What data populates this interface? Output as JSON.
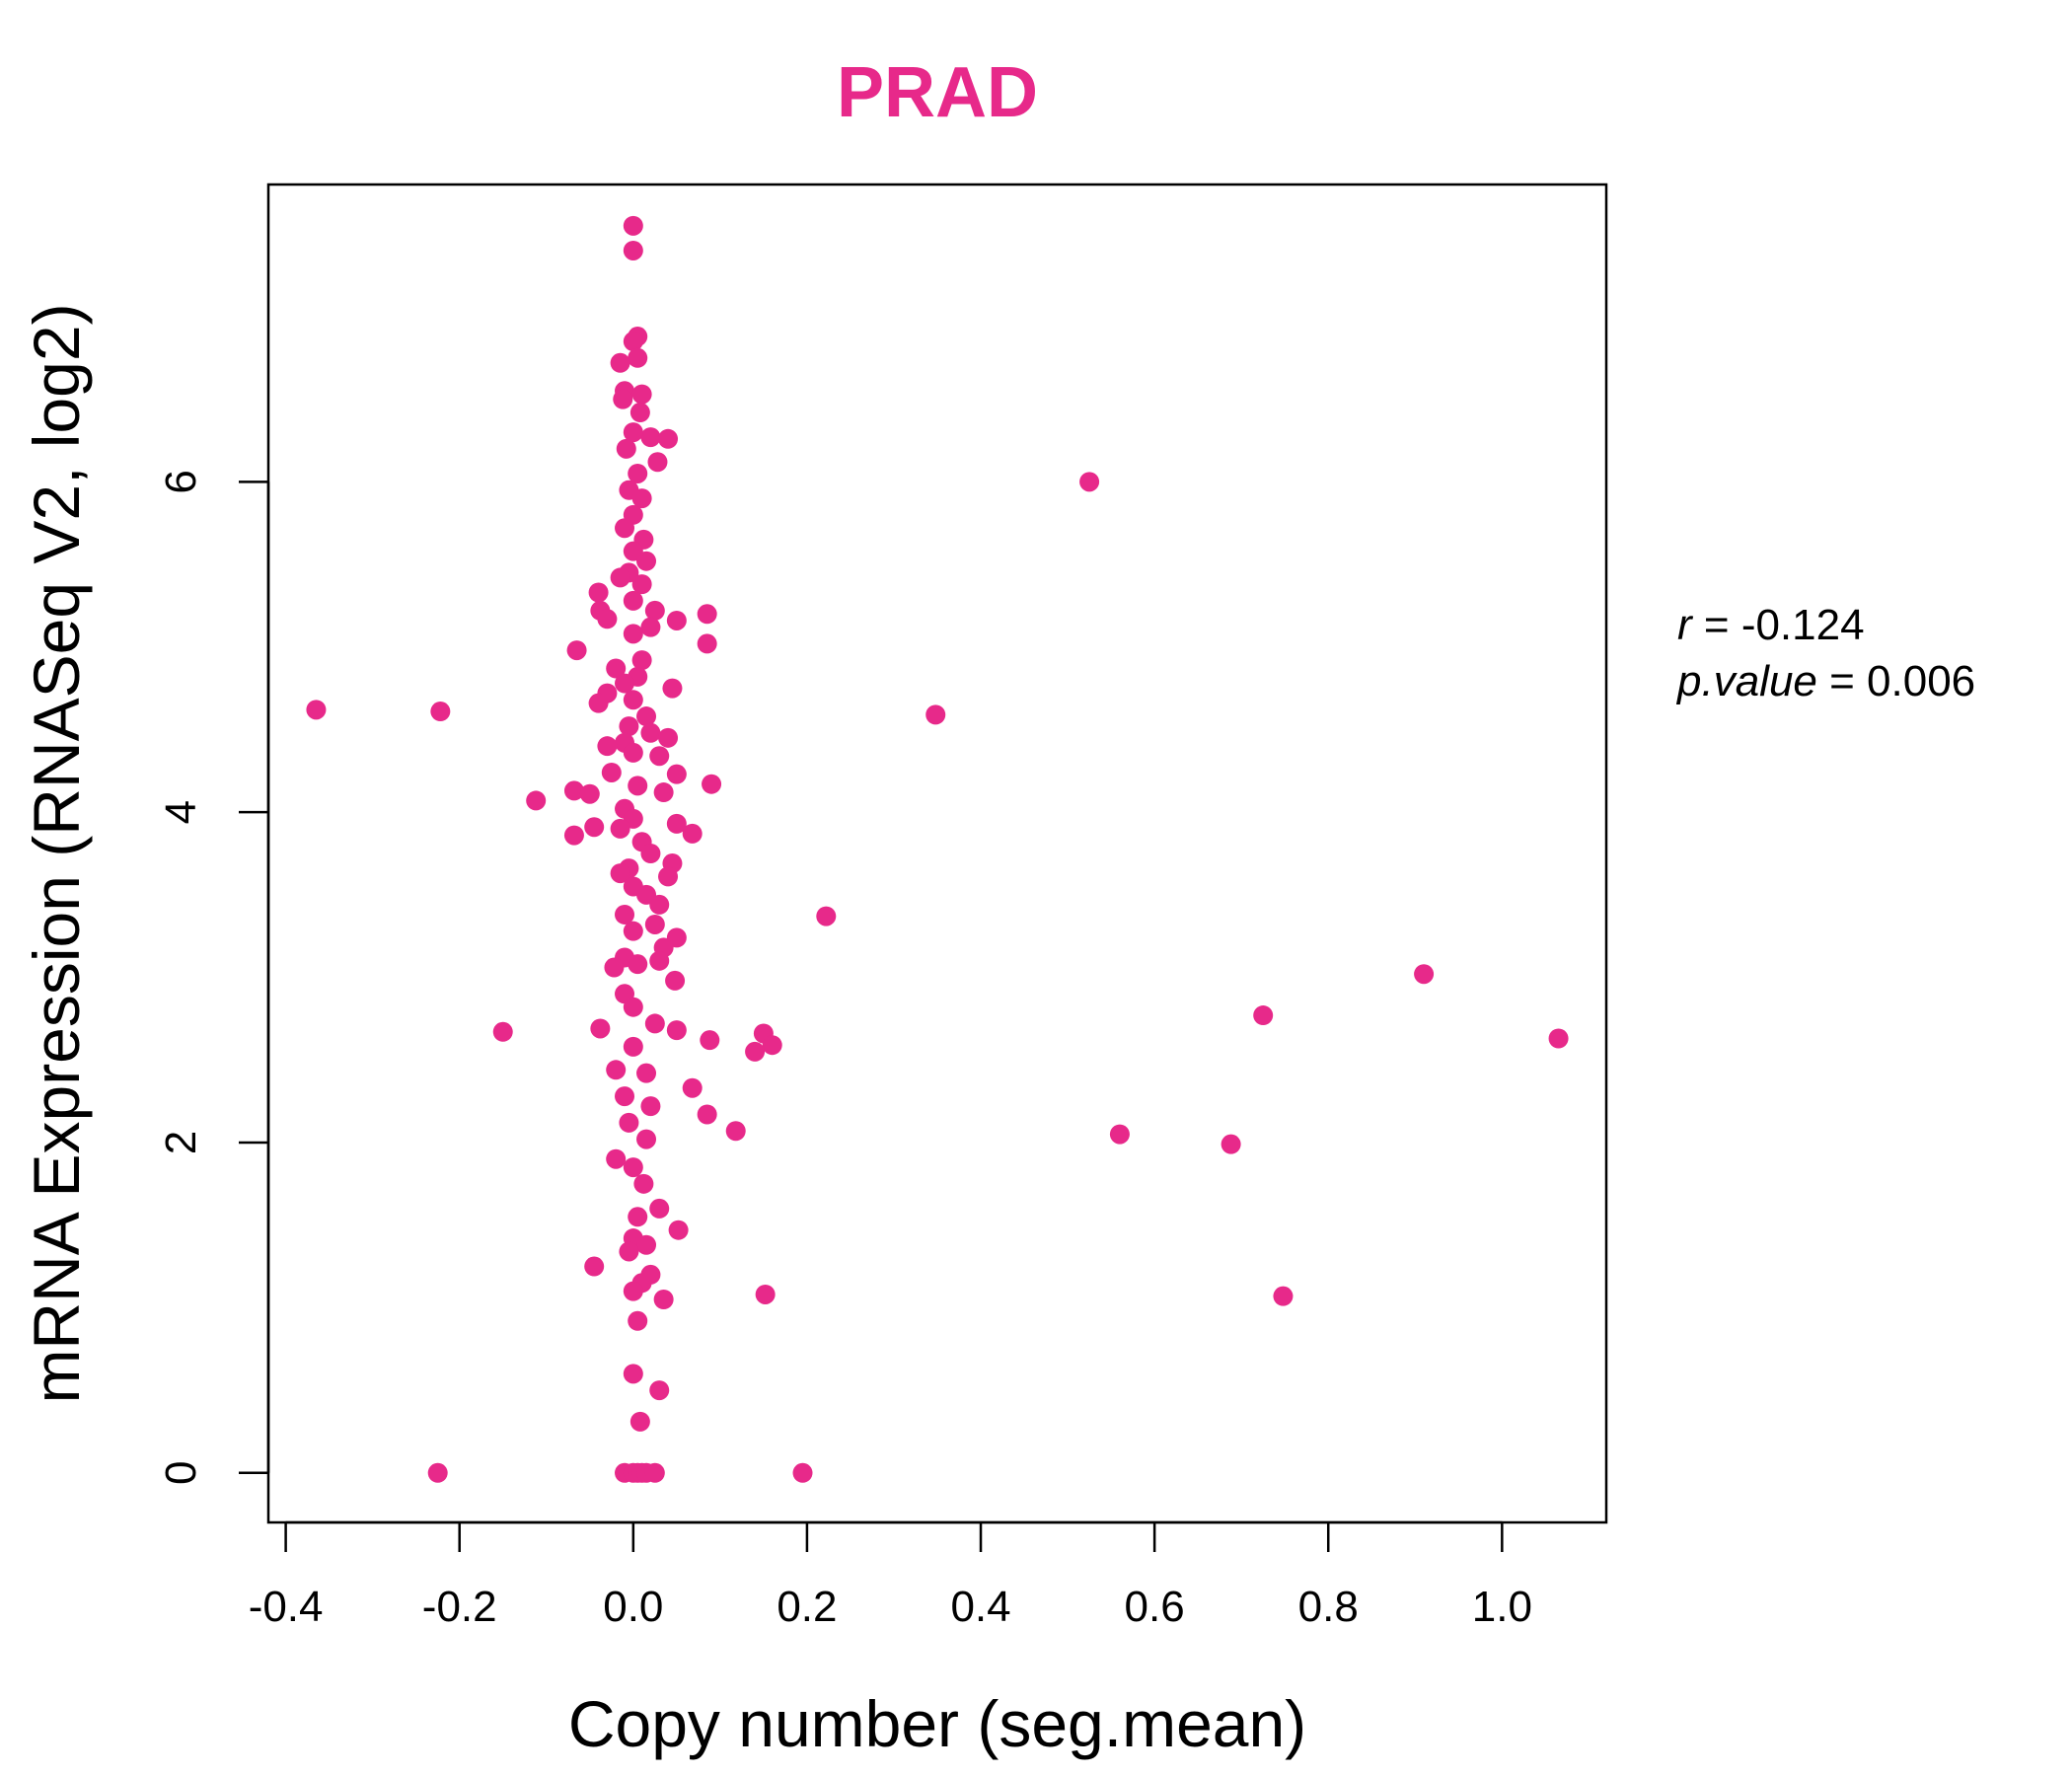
{
  "chart_data": {
    "type": "scatter",
    "title": "PRAD",
    "xlabel": "Copy number (seg.mean)",
    "ylabel": "mRNA Expression (RNASeq V2, log2)",
    "xlim": [
      -0.42,
      1.12
    ],
    "ylim": [
      -0.3,
      7.8
    ],
    "xticks": [
      -0.4,
      -0.2,
      0.0,
      0.2,
      0.4,
      0.6,
      0.8,
      1.0
    ],
    "xtick_labels": [
      "-0.4",
      "-0.2",
      "0.0",
      "0.2",
      "0.4",
      "0.6",
      "0.8",
      "1.0"
    ],
    "yticks": [
      0,
      2,
      4,
      6
    ],
    "ytick_labels": [
      "0",
      "2",
      "4",
      "6"
    ],
    "grid": false,
    "point_color": "#e7298a",
    "title_color": "#e7298a",
    "stats": {
      "r_label": "r",
      "r_value": "-0.124",
      "p_label": "p.value",
      "p_value": "0.006"
    },
    "points": [
      [
        0.0,
        7.55
      ],
      [
        0.0,
        7.4
      ],
      [
        0.005,
        6.88
      ],
      [
        0.0,
        6.85
      ],
      [
        -0.015,
        6.72
      ],
      [
        0.005,
        6.75
      ],
      [
        -0.01,
        6.55
      ],
      [
        0.01,
        6.53
      ],
      [
        -0.012,
        6.5
      ],
      [
        0.008,
        6.42
      ],
      [
        0.02,
        6.27
      ],
      [
        0.04,
        6.26
      ],
      [
        0.0,
        6.3
      ],
      [
        -0.008,
        6.2
      ],
      [
        0.028,
        6.12
      ],
      [
        0.005,
        6.05
      ],
      [
        -0.005,
        5.95
      ],
      [
        0.01,
        5.9
      ],
      [
        0.0,
        5.8
      ],
      [
        -0.01,
        5.72
      ],
      [
        0.012,
        5.65
      ],
      [
        0.0,
        5.58
      ],
      [
        0.015,
        5.52
      ],
      [
        -0.005,
        5.45
      ],
      [
        -0.015,
        5.42
      ],
      [
        0.01,
        5.38
      ],
      [
        -0.04,
        5.33
      ],
      [
        0.0,
        5.28
      ],
      [
        -0.038,
        5.22
      ],
      [
        0.025,
        5.22
      ],
      [
        0.085,
        5.2
      ],
      [
        -0.03,
        5.17
      ],
      [
        0.05,
        5.16
      ],
      [
        0.02,
        5.12
      ],
      [
        0.0,
        5.08
      ],
      [
        0.085,
        5.02
      ],
      [
        -0.065,
        4.98
      ],
      [
        0.01,
        4.92
      ],
      [
        -0.02,
        4.87
      ],
      [
        0.005,
        4.82
      ],
      [
        -0.01,
        4.78
      ],
      [
        0.045,
        4.75
      ],
      [
        -0.03,
        4.72
      ],
      [
        0.0,
        4.68
      ],
      [
        -0.04,
        4.66
      ],
      [
        -0.365,
        4.62
      ],
      [
        -0.222,
        4.61
      ],
      [
        0.348,
        4.59
      ],
      [
        0.015,
        4.58
      ],
      [
        -0.005,
        4.52
      ],
      [
        0.02,
        4.48
      ],
      [
        0.04,
        4.45
      ],
      [
        -0.01,
        4.42
      ],
      [
        -0.03,
        4.4
      ],
      [
        0.0,
        4.36
      ],
      [
        0.03,
        4.34
      ],
      [
        -0.025,
        4.24
      ],
      [
        0.05,
        4.23
      ],
      [
        0.09,
        4.17
      ],
      [
        0.005,
        4.16
      ],
      [
        -0.068,
        4.13
      ],
      [
        -0.05,
        4.11
      ],
      [
        0.035,
        4.12
      ],
      [
        -0.112,
        4.07
      ],
      [
        -0.01,
        4.02
      ],
      [
        0.0,
        3.96
      ],
      [
        0.05,
        3.93
      ],
      [
        -0.045,
        3.91
      ],
      [
        -0.015,
        3.9
      ],
      [
        0.068,
        3.87
      ],
      [
        -0.068,
        3.86
      ],
      [
        0.01,
        3.82
      ],
      [
        0.02,
        3.75
      ],
      [
        0.045,
        3.69
      ],
      [
        -0.005,
        3.66
      ],
      [
        -0.015,
        3.63
      ],
      [
        0.04,
        3.61
      ],
      [
        0.0,
        3.55
      ],
      [
        0.015,
        3.5
      ],
      [
        0.03,
        3.44
      ],
      [
        -0.01,
        3.38
      ],
      [
        0.222,
        3.37
      ],
      [
        0.025,
        3.32
      ],
      [
        0.0,
        3.28
      ],
      [
        0.05,
        3.24
      ],
      [
        0.035,
        3.18
      ],
      [
        -0.01,
        3.12
      ],
      [
        0.005,
        3.08
      ],
      [
        -0.022,
        3.06
      ],
      [
        0.03,
        3.1
      ],
      [
        0.91,
        3.02
      ],
      [
        0.048,
        2.98
      ],
      [
        -0.01,
        2.9
      ],
      [
        0.0,
        2.82
      ],
      [
        0.725,
        2.77
      ],
      [
        0.025,
        2.72
      ],
      [
        -0.038,
        2.69
      ],
      [
        -0.15,
        2.67
      ],
      [
        0.05,
        2.68
      ],
      [
        0.15,
        2.66
      ],
      [
        1.065,
        2.63
      ],
      [
        0.088,
        2.62
      ],
      [
        0.16,
        2.59
      ],
      [
        0.0,
        2.58
      ],
      [
        0.14,
        2.55
      ],
      [
        -0.02,
        2.44
      ],
      [
        0.015,
        2.42
      ],
      [
        0.068,
        2.33
      ],
      [
        -0.01,
        2.28
      ],
      [
        0.02,
        2.22
      ],
      [
        0.085,
        2.17
      ],
      [
        -0.005,
        2.12
      ],
      [
        0.118,
        2.07
      ],
      [
        0.56,
        2.05
      ],
      [
        0.015,
        2.02
      ],
      [
        0.688,
        1.99
      ],
      [
        -0.02,
        1.9
      ],
      [
        0.0,
        1.85
      ],
      [
        0.012,
        1.75
      ],
      [
        0.03,
        1.6
      ],
      [
        0.005,
        1.55
      ],
      [
        0.052,
        1.47
      ],
      [
        0.0,
        1.42
      ],
      [
        0.015,
        1.38
      ],
      [
        -0.005,
        1.34
      ],
      [
        -0.045,
        1.25
      ],
      [
        0.02,
        1.2
      ],
      [
        0.01,
        1.15
      ],
      [
        0.0,
        1.1
      ],
      [
        0.152,
        1.08
      ],
      [
        0.748,
        1.07
      ],
      [
        0.035,
        1.05
      ],
      [
        0.005,
        0.92
      ],
      [
        0.0,
        0.6
      ],
      [
        0.03,
        0.5
      ],
      [
        0.008,
        0.31
      ],
      [
        -0.225,
        0.0
      ],
      [
        -0.01,
        0.0
      ],
      [
        0.0,
        0.0
      ],
      [
        0.005,
        0.0
      ],
      [
        0.01,
        0.0
      ],
      [
        0.015,
        0.0
      ],
      [
        0.025,
        0.0
      ],
      [
        0.195,
        0.0
      ],
      [
        0.525,
        6.0
      ]
    ]
  }
}
